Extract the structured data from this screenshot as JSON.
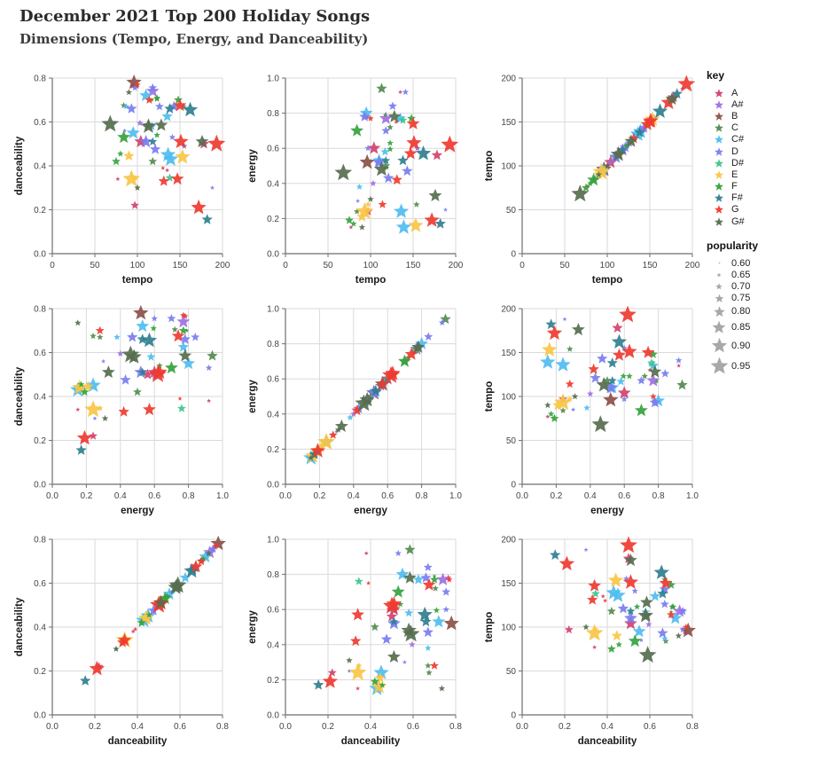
{
  "title": "December 2021 Top 200 Holiday Songs",
  "subtitle": "Dimensions (Tempo, Energy, and Danceability)",
  "chart_data": {
    "type": "scatter",
    "layout": "scatterplot-matrix-3x3",
    "marker": "star",
    "grid": "on",
    "matrix": {
      "x_by_row": [
        "tempo",
        "energy",
        "danceability"
      ],
      "y_by_col": [
        "danceability",
        "energy",
        "tempo"
      ]
    },
    "axes": {
      "tempo": {
        "min": 0,
        "max": 200,
        "tick_values": [
          0,
          50,
          100,
          150,
          200
        ],
        "tick_labels": [
          "0",
          "50",
          "100",
          "150",
          "200"
        ]
      },
      "energy": {
        "min": 0,
        "max": 1.0,
        "tick_values": [
          0,
          0.2,
          0.4,
          0.6,
          0.8,
          1.0
        ],
        "tick_labels": [
          "0.0",
          "0.2",
          "0.4",
          "0.6",
          "0.8",
          "1.0"
        ]
      },
      "danceability": {
        "min": 0,
        "max": 0.8,
        "tick_values": [
          0,
          0.2,
          0.4,
          0.6,
          0.8
        ],
        "tick_labels": [
          "0.0",
          "0.2",
          "0.4",
          "0.6",
          "0.8"
        ]
      }
    },
    "legend": {
      "key_title": "key",
      "keys": [
        {
          "label": "A",
          "color": "#d1426e"
        },
        {
          "label": "A#",
          "color": "#a06fe0"
        },
        {
          "label": "B",
          "color": "#8c5045"
        },
        {
          "label": "C",
          "color": "#538b4e"
        },
        {
          "label": "C#",
          "color": "#4fbdf0"
        },
        {
          "label": "D",
          "color": "#7a7df0"
        },
        {
          "label": "D#",
          "color": "#40c48f"
        },
        {
          "label": "E",
          "color": "#f8c545"
        },
        {
          "label": "F",
          "color": "#36a23d"
        },
        {
          "label": "F#",
          "color": "#2f7f90"
        },
        {
          "label": "G",
          "color": "#ef3b30"
        },
        {
          "label": "G#",
          "color": "#566e4e"
        }
      ],
      "popularity_title": "popularity",
      "popularity_levels": [
        "0.60",
        "0.65",
        "0.70",
        "0.75",
        "0.80",
        "0.85",
        "0.90",
        "0.95"
      ],
      "popularity_color": "#999999"
    },
    "points": [
      {
        "key": "A",
        "tempo": 77,
        "energy": 0.15,
        "danceability": 0.34,
        "popularity": 0.65
      },
      {
        "key": "A",
        "tempo": 97,
        "energy": 0.24,
        "danceability": 0.22,
        "popularity": 0.75
      },
      {
        "key": "A",
        "tempo": 178,
        "energy": 0.56,
        "danceability": 0.5,
        "popularity": 0.8
      },
      {
        "key": "A",
        "tempo": 104,
        "energy": 0.6,
        "danceability": 0.51,
        "popularity": 0.85
      },
      {
        "key": "A",
        "tempo": 135,
        "energy": 0.92,
        "danceability": 0.38,
        "popularity": 0.65
      },
      {
        "key": "A",
        "tempo": 95,
        "energy": 0.78,
        "danceability": 0.765,
        "popularity": 0.7
      },
      {
        "key": "A#",
        "tempo": 118,
        "energy": 0.77,
        "danceability": 0.74,
        "popularity": 0.85
      },
      {
        "key": "A#",
        "tempo": 103,
        "energy": 0.4,
        "danceability": 0.595,
        "popularity": 0.7
      },
      {
        "key": "B",
        "tempo": 96,
        "energy": 0.52,
        "danceability": 0.78,
        "popularity": 0.9
      },
      {
        "key": "C",
        "tempo": 113,
        "energy": 0.94,
        "danceability": 0.585,
        "popularity": 0.8
      },
      {
        "key": "C",
        "tempo": 154,
        "energy": 0.28,
        "danceability": 0.67,
        "popularity": 0.7
      },
      {
        "key": "C",
        "tempo": 123,
        "energy": 0.72,
        "danceability": 0.705,
        "popularity": 0.7
      },
      {
        "key": "C",
        "tempo": 118,
        "energy": 0.5,
        "danceability": 0.42,
        "popularity": 0.75
      },
      {
        "key": "C",
        "tempo": 84,
        "energy": 0.24,
        "danceability": 0.675,
        "popularity": 0.7
      },
      {
        "key": "C#",
        "tempo": 139,
        "energy": 0.15,
        "danceability": 0.43,
        "popularity": 0.9
      },
      {
        "key": "C#",
        "tempo": 136,
        "energy": 0.24,
        "danceability": 0.45,
        "popularity": 0.9
      },
      {
        "key": "C#",
        "tempo": 87,
        "energy": 0.38,
        "danceability": 0.67,
        "popularity": 0.7
      },
      {
        "key": "C#",
        "tempo": 110,
        "energy": 0.53,
        "danceability": 0.72,
        "popularity": 0.85
      },
      {
        "key": "C#",
        "tempo": 117,
        "energy": 0.58,
        "danceability": 0.58,
        "popularity": 0.75
      },
      {
        "key": "C#",
        "tempo": 95,
        "energy": 0.8,
        "danceability": 0.55,
        "popularity": 0.85
      },
      {
        "key": "C#",
        "tempo": 135,
        "energy": 0.77,
        "danceability": 0.625,
        "popularity": 0.8
      },
      {
        "key": "D",
        "tempo": 188,
        "energy": 0.25,
        "danceability": 0.3,
        "popularity": 0.65
      },
      {
        "key": "D",
        "tempo": 85,
        "energy": 0.3,
        "danceability": 0.56,
        "popularity": 0.65
      },
      {
        "key": "D",
        "tempo": 126,
        "energy": 0.84,
        "danceability": 0.67,
        "popularity": 0.75
      },
      {
        "key": "D",
        "tempo": 141,
        "energy": 0.92,
        "danceability": 0.53,
        "popularity": 0.7
      },
      {
        "key": "D",
        "tempo": 97,
        "energy": 0.6,
        "danceability": 0.755,
        "popularity": 0.7
      },
      {
        "key": "D",
        "tempo": 118,
        "energy": 0.7,
        "danceability": 0.755,
        "popularity": 0.75
      },
      {
        "key": "D",
        "tempo": 143,
        "energy": 0.47,
        "danceability": 0.67,
        "popularity": 0.8
      },
      {
        "key": "D",
        "tempo": 155,
        "energy": 0.6,
        "danceability": 0.49,
        "popularity": 0.7
      },
      {
        "key": "D",
        "tempo": 121,
        "energy": 0.43,
        "danceability": 0.475,
        "popularity": 0.8
      },
      {
        "key": "D",
        "tempo": 110,
        "energy": 0.52,
        "danceability": 0.51,
        "popularity": 0.85
      },
      {
        "key": "D",
        "tempo": 93,
        "energy": 0.78,
        "danceability": 0.66,
        "popularity": 0.8
      },
      {
        "key": "D#",
        "tempo": 138,
        "energy": 0.76,
        "danceability": 0.345,
        "popularity": 0.75
      },
      {
        "key": "E",
        "tempo": 93,
        "energy": 0.24,
        "danceability": 0.34,
        "popularity": 0.95
      },
      {
        "key": "E",
        "tempo": 90,
        "energy": 0.21,
        "danceability": 0.445,
        "popularity": 0.8
      },
      {
        "key": "E",
        "tempo": 153,
        "energy": 0.16,
        "danceability": 0.44,
        "popularity": 0.9
      },
      {
        "key": "E",
        "tempo": 97,
        "energy": 0.28,
        "danceability": 0.345,
        "popularity": 0.7
      },
      {
        "key": "F",
        "tempo": 75,
        "energy": 0.19,
        "danceability": 0.42,
        "popularity": 0.75
      },
      {
        "key": "F",
        "tempo": 80,
        "energy": 0.17,
        "danceability": 0.455,
        "popularity": 0.7
      },
      {
        "key": "F",
        "tempo": 84,
        "energy": 0.7,
        "danceability": 0.53,
        "popularity": 0.85
      },
      {
        "key": "F",
        "tempo": 123,
        "energy": 0.595,
        "danceability": 0.71,
        "popularity": 0.7
      },
      {
        "key": "F",
        "tempo": 117,
        "energy": 0.79,
        "danceability": 0.7,
        "popularity": 0.65
      },
      {
        "key": "F",
        "tempo": 148,
        "energy": 0.77,
        "danceability": 0.7,
        "popularity": 0.75
      },
      {
        "key": "F",
        "tempo": 123,
        "energy": 0.63,
        "danceability": 0.54,
        "popularity": 0.7
      },
      {
        "key": "F#",
        "tempo": 182,
        "energy": 0.17,
        "danceability": 0.155,
        "popularity": 0.8
      },
      {
        "key": "F#",
        "tempo": 162,
        "energy": 0.57,
        "danceability": 0.655,
        "popularity": 0.9
      },
      {
        "key": "F#",
        "tempo": 138,
        "energy": 0.53,
        "danceability": 0.66,
        "popularity": 0.8
      },
      {
        "key": "F#",
        "tempo": 118,
        "energy": 0.53,
        "danceability": 0.51,
        "popularity": 0.75
      },
      {
        "key": "G",
        "tempo": 193,
        "energy": 0.62,
        "danceability": 0.5,
        "popularity": 0.95
      },
      {
        "key": "G",
        "tempo": 172,
        "energy": 0.19,
        "danceability": 0.21,
        "popularity": 0.9
      },
      {
        "key": "G",
        "tempo": 151,
        "energy": 0.63,
        "danceability": 0.51,
        "popularity": 0.9
      },
      {
        "key": "G",
        "tempo": 147,
        "energy": 0.57,
        "danceability": 0.34,
        "popularity": 0.85
      },
      {
        "key": "G",
        "tempo": 131,
        "energy": 0.42,
        "danceability": 0.33,
        "popularity": 0.8
      },
      {
        "key": "G",
        "tempo": 114,
        "energy": 0.28,
        "danceability": 0.7,
        "popularity": 0.75
      },
      {
        "key": "G",
        "tempo": 100,
        "energy": 0.77,
        "danceability": 0.77,
        "popularity": 0.7
      },
      {
        "key": "G",
        "tempo": 150,
        "energy": 0.74,
        "danceability": 0.675,
        "popularity": 0.85
      },
      {
        "key": "G",
        "tempo": 130,
        "energy": 0.75,
        "danceability": 0.39,
        "popularity": 0.65
      },
      {
        "key": "G#",
        "tempo": 68,
        "energy": 0.46,
        "danceability": 0.59,
        "popularity": 0.95
      },
      {
        "key": "G#",
        "tempo": 176,
        "energy": 0.33,
        "danceability": 0.51,
        "popularity": 0.85
      },
      {
        "key": "G#",
        "tempo": 100,
        "energy": 0.31,
        "danceability": 0.3,
        "popularity": 0.7
      },
      {
        "key": "G#",
        "tempo": 113,
        "energy": 0.48,
        "danceability": 0.58,
        "popularity": 0.9
      },
      {
        "key": "G#",
        "tempo": 90,
        "energy": 0.15,
        "danceability": 0.735,
        "popularity": 0.7
      },
      {
        "key": "G#",
        "tempo": 128,
        "energy": 0.78,
        "danceability": 0.585,
        "popularity": 0.85
      }
    ],
    "style": {
      "gridline_color": "#dadada",
      "axis_color": "#6e6e6e",
      "tick_text_color": "#454545",
      "axis_title_color": "#1a1a1a"
    }
  }
}
